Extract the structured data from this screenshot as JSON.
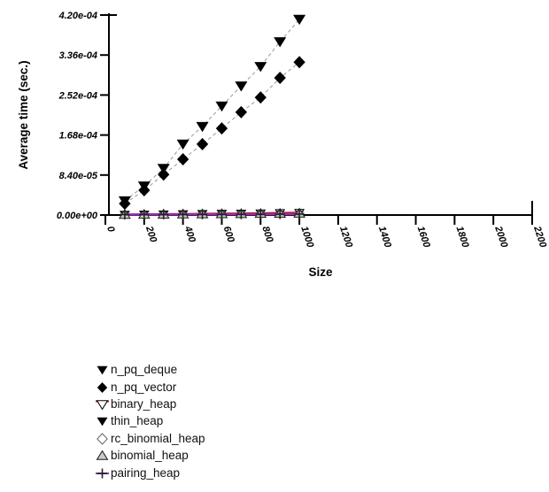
{
  "chart_data": {
    "type": "line",
    "title": "",
    "xlabel": "Size",
    "ylabel": "Average time (sec.)",
    "xlim": [
      0,
      2200
    ],
    "ylim": [
      0,
      0.00042
    ],
    "grid": false,
    "legend_position": "bottom-left",
    "x_ticks": [
      {
        "value": 0,
        "label": "0"
      },
      {
        "value": 200,
        "label": "200"
      },
      {
        "value": 400,
        "label": "400"
      },
      {
        "value": 600,
        "label": "600"
      },
      {
        "value": 800,
        "label": "800"
      },
      {
        "value": 1000,
        "label": "1000"
      },
      {
        "value": 1200,
        "label": "1200"
      },
      {
        "value": 1400,
        "label": "1400"
      },
      {
        "value": 1600,
        "label": "1600"
      },
      {
        "value": 1800,
        "label": "1800"
      },
      {
        "value": 2000,
        "label": "2000"
      },
      {
        "value": 2200,
        "label": "2200"
      }
    ],
    "y_ticks": [
      {
        "value": 0.0,
        "label": "0.00e+00"
      },
      {
        "value": 8.4e-05,
        "label": "8.40e-05"
      },
      {
        "value": 0.000168,
        "label": "1.68e-04"
      },
      {
        "value": 0.000252,
        "label": "2.52e-04"
      },
      {
        "value": 0.000336,
        "label": "3.36e-04"
      },
      {
        "value": 0.00042,
        "label": "4.20e-04"
      }
    ],
    "x": [
      100,
      200,
      300,
      400,
      500,
      600,
      700,
      800,
      900,
      1000
    ],
    "series": [
      {
        "name": "n_pq_deque",
        "marker": "tri-down",
        "marker_size": 7,
        "marker_fill": "#000000",
        "marker_stroke": "none",
        "line_color": "#999999",
        "line_width": 1,
        "line_dash": "4 3",
        "values": [
          3e-05,
          6.1e-05,
          9.8e-05,
          0.000149,
          0.000186,
          0.000229,
          0.000271,
          0.000312,
          0.000364,
          0.000411
        ]
      },
      {
        "name": "n_pq_vector",
        "marker": "diamond",
        "marker_size": 7,
        "marker_fill": "#000000",
        "marker_stroke": "none",
        "line_color": "#999999",
        "line_width": 1,
        "line_dash": "4 3",
        "values": [
          2.4e-05,
          5.2e-05,
          8.5e-05,
          0.000117,
          0.000149,
          0.000182,
          0.000216,
          0.000247,
          0.000288,
          0.000321
        ]
      },
      {
        "name": "binary_heap",
        "marker": "tri-down",
        "marker_size": 5,
        "marker_fill": "#ffffff",
        "marker_stroke": "#000000",
        "line_color": "#cc1111",
        "line_width": 2,
        "line_dash": "",
        "values": [
          1.2e-06,
          1.6e-06,
          2e-06,
          2.4e-06,
          2.8e-06,
          3.2e-06,
          3.6e-06,
          4e-06,
          4.6e-06,
          5.2e-06
        ]
      },
      {
        "name": "thin_heap",
        "marker": "tri-down",
        "marker_size": 5,
        "marker_fill": "#000000",
        "marker_stroke": "none",
        "line_color": "none",
        "line_width": 0,
        "line_dash": "",
        "values": [
          8e-07,
          1e-06,
          1.2e-06,
          1.4e-06,
          1.6e-06,
          1.8e-06,
          2e-06,
          2.2e-06,
          2.4e-06,
          2.6e-06
        ]
      },
      {
        "name": "rc_binomial_heap",
        "marker": "diamond",
        "marker_size": 5,
        "marker_fill": "#ffffff",
        "marker_stroke": "#666666",
        "line_color": "none",
        "line_width": 0,
        "line_dash": "",
        "values": [
          1e-06,
          1.2e-06,
          1.5e-06,
          1.7e-06,
          2e-06,
          2.2e-06,
          2.5e-06,
          2.7e-06,
          3e-06,
          3.2e-06
        ]
      },
      {
        "name": "binomial_heap",
        "marker": "tri-up",
        "marker_size": 6,
        "marker_fill": "#c9c9c9",
        "marker_stroke": "#1a1a1a",
        "line_color": "none",
        "line_width": 0,
        "line_dash": "",
        "values": [
          1e-06,
          1.3e-06,
          1.6e-06,
          1.9e-06,
          2.2e-06,
          2.5e-06,
          2.8e-06,
          3.1e-06,
          3.4e-06,
          3.7e-06
        ]
      },
      {
        "name": "pairing_heap",
        "marker": "plus",
        "marker_size": 5.5,
        "marker_fill": "#222222",
        "marker_stroke": "#222222",
        "line_color": "#9130b5",
        "line_width": 2.5,
        "line_dash": "",
        "values": [
          1e-06,
          1.1e-06,
          1.2e-06,
          1.3e-06,
          1.4e-06,
          1.5e-06,
          1.6e-06,
          1.7e-06,
          1.8e-06,
          1.9e-06
        ]
      }
    ],
    "legend_entries": [
      "n_pq_deque",
      "n_pq_vector",
      "binary_heap",
      "thin_heap",
      "rc_binomial_heap",
      "binomial_heap",
      "pairing_heap"
    ]
  }
}
